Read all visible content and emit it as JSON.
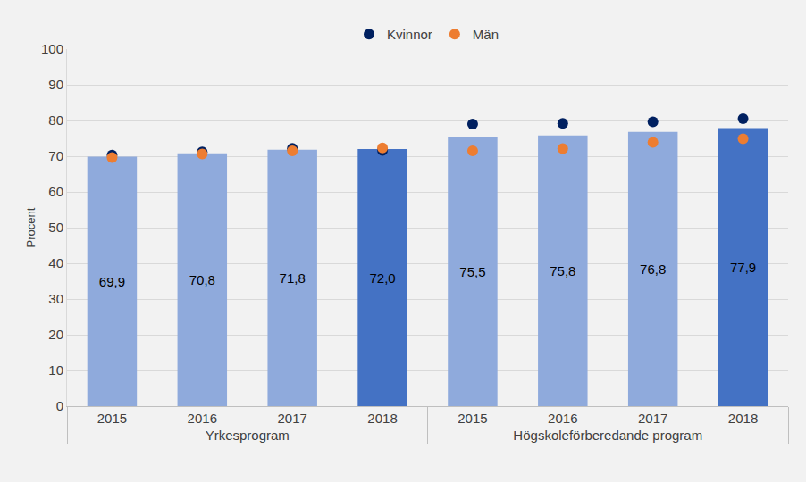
{
  "chart_data": {
    "type": "bar",
    "y_label": "Procent",
    "groups": [
      {
        "name": "Yrkesprogram",
        "categories": [
          "2015",
          "2016",
          "2017",
          "2018"
        ]
      },
      {
        "name": "Högskoleförberedande program",
        "categories": [
          "2015",
          "2016",
          "2017",
          "2018"
        ]
      }
    ],
    "series": [
      {
        "type": "bar",
        "values": [
          69.9,
          70.8,
          71.8,
          72.0,
          75.5,
          75.8,
          76.8,
          77.9
        ],
        "value_labels": [
          "69,9",
          "70,8",
          "71,8",
          "72,0",
          "75,5",
          "75,8",
          "76,8",
          "77,9"
        ],
        "colors": [
          "#8faadc",
          "#8faadc",
          "#8faadc",
          "#4472c4",
          "#8faadc",
          "#8faadc",
          "#8faadc",
          "#4472c4"
        ],
        "data_labels": true
      },
      {
        "name": "Kvinnor",
        "type": "scatter",
        "marker": "circle",
        "color": "#002060",
        "values": [
          70.3,
          71.2,
          72.2,
          71.6,
          79.0,
          79.2,
          79.6,
          80.5
        ]
      },
      {
        "name": "Män",
        "type": "scatter",
        "marker": "circle",
        "color": "#ed7d31",
        "values": [
          69.6,
          70.6,
          71.5,
          72.3,
          71.5,
          72.1,
          73.9,
          74.9
        ]
      }
    ],
    "ylim": [
      0,
      100
    ],
    "yticks": [
      0,
      10,
      20,
      30,
      40,
      50,
      60,
      70,
      80,
      90,
      100
    ],
    "grid": true,
    "legend": "top"
  }
}
